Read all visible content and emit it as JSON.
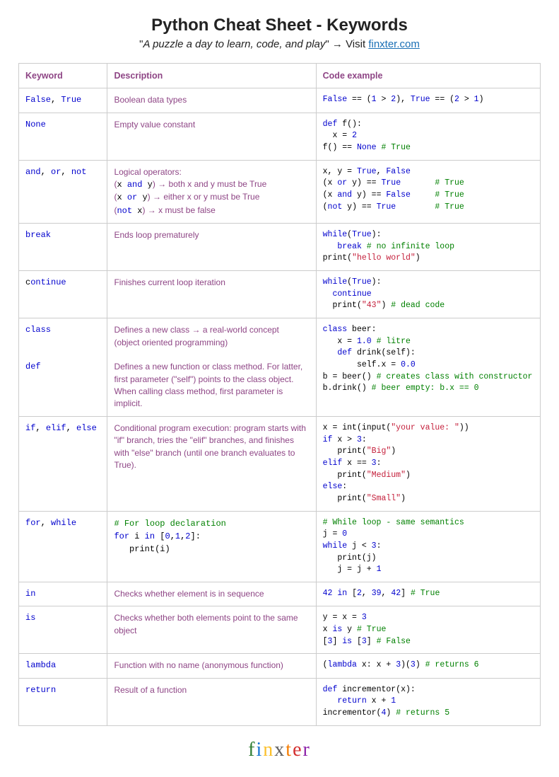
{
  "title": "Python Cheat Sheet - Keywords",
  "subtitle_quote": "A puzzle a day to learn, code, and play",
  "subtitle_arrow": "→",
  "subtitle_visit": "Visit",
  "subtitle_link": "finxter.com",
  "headers": {
    "keyword": "Keyword",
    "description": "Description",
    "code": "Code example"
  },
  "rows": [
    {
      "keyword_html": "<span class='k'>False</span><span class='pk'>, </span><span class='k'>True</span>",
      "desc_html": "Boolean data types",
      "code_html": "<span class='k'>False</span> == (<span class='n'>1</span> &gt; <span class='n'>2</span>), <span class='k'>True</span> == (<span class='n'>2</span> &gt; <span class='n'>1</span>)"
    },
    {
      "keyword_html": "<span class='k'>None</span>",
      "desc_html": "Empty value constant",
      "code_html": "<span class='k'>def</span> f():\n  x = <span class='n'>2</span>\nf() == <span class='k'>None</span> <span class='c'># True</span>"
    },
    {
      "keyword_html": "<span class='k'>and</span><span class='pk'>, </span><span class='k'>or</span><span class='pk'>, </span><span class='k'>not</span>",
      "desc_html": "Logical operators:<br>(<span class='mono'>x <span class='k'>and</span> y</span>) → both x and y must be True<br>(<span class='mono'>x <span class='k'>or</span> y</span>) → either x or y must be True<br>(<span class='mono'><span class='k'>not</span> x</span>) → x must be false",
      "code_html": "x, y = <span class='k'>True</span>, <span class='k'>False</span>\n(x <span class='k'>or</span> y) == <span class='k'>True</span>       <span class='c'># True</span>\n(x <span class='k'>and</span> y) == <span class='k'>False</span>     <span class='c'># True</span>\n(<span class='k'>not</span> y) == <span class='k'>True</span>        <span class='c'># True</span>"
    },
    {
      "keyword_html": "<span class='k'>break</span>",
      "desc_html": "Ends loop prematurely",
      "code_html": "<span class='k'>while</span>(<span class='k'>True</span>):\n   <span class='k'>break</span> <span class='c'># no infinite loop</span>\nprint(<span class='s'>\"hello world\"</span>)"
    },
    {
      "keyword_html": "<span class='pl'>c</span><span class='k'>ontinue</span>",
      "desc_html": "Finishes current loop iteration",
      "code_html": "<span class='k'>while</span>(<span class='k'>True</span>):\n  <span class='k'>continue</span>\n  print(<span class='s'>\"43\"</span>) <span class='c'># dead code</span>"
    },
    {
      "keyword_html": "<span class='k'>class</span><br><br><br><span class='k'>def</span>",
      "desc_html": "Defines a new class → a real-world concept<br>(object oriented programming)<br><br>Defines a new function or class method. For latter, first parameter (\"self\") points to the class object. When calling class method, first parameter is implicit.",
      "code_html": "<span class='k'>class</span> beer:\n   x = <span class='n'>1.0</span> <span class='c'># litre</span>\n   <span class='k'>def</span> drink(self):\n       self.x = <span class='n'>0.0</span>\nb = beer() <span class='c'># creates class with constructor</span>\nb.drink() <span class='c'># beer empty: b.x == 0</span>"
    },
    {
      "keyword_html": "<span class='k'>if</span><span class='pk'>, </span><span class='k'>elif</span><span class='pk'>, </span><span class='k'>else</span>",
      "desc_html": "Conditional program execution: program starts with \"if\" branch, tries the \"elif\" branches, and finishes with \"else\" branch (until one branch evaluates to True).",
      "code_html": "x = int(input(<span class='s'>\"your value: \"</span>))\n<span class='k'>if</span> x &gt; <span class='n'>3</span>:\n   print(<span class='s'>\"Big\"</span>)\n<span class='k'>elif</span> x == <span class='n'>3</span>:\n   print(<span class='s'>\"Medium\"</span>)\n<span class='k'>else</span>:\n   print(<span class='s'>\"Small\"</span>)"
    },
    {
      "keyword_html": "<span class='k'>for</span><span class='pk'>, </span><span class='k'>while</span>",
      "desc_html": "<span class='mono'><span class='c'># For loop declaration</span>\n<span class='k'>for</span> i <span class='k'>in</span> [<span class='n'>0</span>,<span class='n'>1</span>,<span class='n'>2</span>]:\n   print(i)</span>",
      "code_html": "<span class='c'># While loop - same semantics</span>\nj = <span class='n'>0</span>\n<span class='k'>while</span> j &lt; <span class='n'>3</span>:\n   print(j)\n   j = j + <span class='n'>1</span>"
    },
    {
      "keyword_html": "<span class='k'>in</span>",
      "desc_html": "Checks whether element is in sequence",
      "code_html": "<span class='n'>42</span> <span class='k'>in</span> [<span class='n'>2</span>, <span class='n'>39</span>, <span class='n'>42</span>] <span class='c'># True</span>"
    },
    {
      "keyword_html": "<span class='k'>is</span>",
      "desc_html": "Checks whether both elements point to the same object",
      "code_html": "y = x = <span class='n'>3</span>\nx <span class='k'>is</span> y <span class='c'># True</span>\n[<span class='n'>3</span>] <span class='k'>is</span> [<span class='n'>3</span>] <span class='c'># False</span>"
    },
    {
      "keyword_html": "<span class='k'>lambda</span>",
      "desc_html": "Function with no name (anonymous function)",
      "code_html": "(<span class='k'>lambda</span> x: x + <span class='n'>3</span>)(<span class='n'>3</span>) <span class='c'># returns 6</span>"
    },
    {
      "keyword_html": "<span class='k'>return</span>",
      "desc_html": "Result of a function",
      "code_html": "<span class='k'>def</span> incrementor(x):\n   <span class='k'>return</span> x + <span class='n'>1</span>\nincrementor(<span class='n'>4</span>) <span class='c'># returns 5</span>"
    }
  ],
  "logo": {
    "letters": [
      "f",
      "i",
      "n",
      "x",
      "t",
      "e",
      "r"
    ],
    "colors": [
      "#2e7d32",
      "#1976d2",
      "#fbc02d",
      "#616161",
      "#f57c00",
      "#d32f2f",
      "#8e24aa"
    ]
  }
}
